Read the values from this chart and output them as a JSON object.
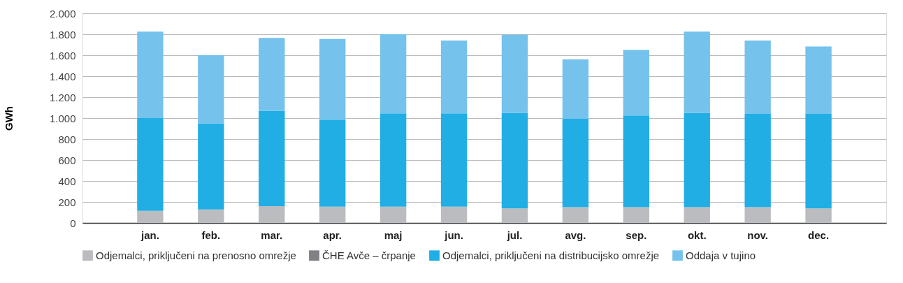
{
  "chart_data": {
    "type": "bar",
    "stacked": true,
    "ylabel": "GWh",
    "categories": [
      "jan.",
      "feb.",
      "mar.",
      "apr.",
      "maj",
      "jun.",
      "jul.",
      "avg.",
      "sep.",
      "okt.",
      "nov.",
      "dec."
    ],
    "series": [
      {
        "name": "Odjemalci, priključeni na prenosno omrežje",
        "color": "#bbbcc0",
        "values": [
          115,
          128,
          160,
          155,
          155,
          155,
          138,
          150,
          150,
          150,
          150,
          138
        ]
      },
      {
        "name": "ČHE Avče – črpanje",
        "color": "#808184",
        "values": [
          0,
          0,
          0,
          0,
          0,
          0,
          0,
          0,
          0,
          0,
          0,
          0
        ]
      },
      {
        "name": "Odjemalci, priključeni na distribucijsko omrežje",
        "color": "#20aee4",
        "values": [
          885,
          822,
          910,
          830,
          890,
          890,
          912,
          843,
          875,
          900,
          890,
          902
        ]
      },
      {
        "name": "Oddaja v tujino",
        "color": "#75c2ec",
        "values": [
          825,
          650,
          695,
          770,
          755,
          695,
          745,
          567,
          625,
          775,
          700,
          643
        ]
      }
    ],
    "ylim": [
      0,
      2000
    ],
    "yticks": [
      0,
      200,
      400,
      600,
      800,
      {
        "value": 1000,
        "label": "1.000"
      },
      {
        "value": 1200,
        "label": "1.200"
      },
      {
        "value": 1400,
        "label": "1.400"
      },
      {
        "value": 1600,
        "label": "1.600"
      },
      {
        "value": 1800,
        "label": "1.800"
      },
      {
        "value": 2000,
        "label": "2.000"
      }
    ],
    "grid": "y",
    "legend": "bottom"
  }
}
